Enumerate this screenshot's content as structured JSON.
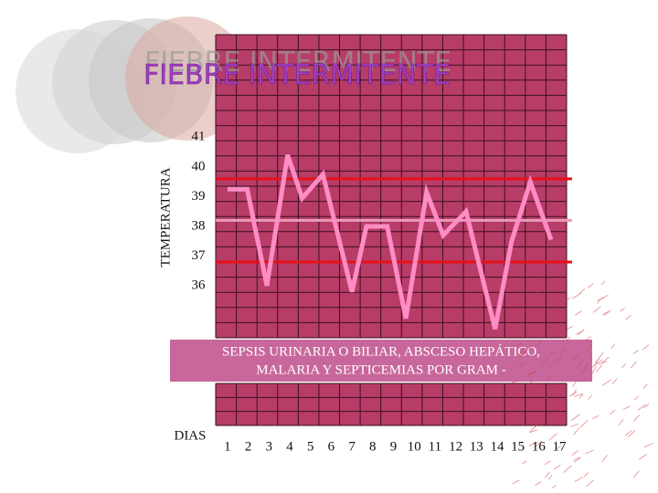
{
  "chart_data": {
    "type": "line",
    "title": "FIEBRE INTERMITENTE",
    "y_label": "TEMPERATURA",
    "x_label": "DIAS",
    "annotation": [
      "SEPSIS URINARIA O BILIAR, ABSCESO HEPÁTICO,",
      "MALARIA Y SEPTICEMIAS POR GRAM -"
    ],
    "xlim": [
      0.43,
      17.35
    ],
    "ylim": [
      34.25,
      44.45
    ],
    "xticks": [
      1,
      2,
      3,
      4,
      5,
      6,
      7,
      8,
      9,
      10,
      11,
      12,
      13,
      14,
      15,
      16,
      17
    ],
    "yticks": [
      36,
      37,
      38,
      39,
      40,
      41
    ],
    "x": [
      1,
      1.95,
      2.9,
      3.9,
      4.6,
      5.6,
      7.0,
      7.7,
      8.7,
      9.6,
      10.6,
      11.4,
      12.5,
      13.9,
      14.7,
      15.6,
      16.6
    ],
    "series": [
      {
        "color": "#ff8cc4",
        "values": [
          39.25,
          39.25,
          36.0,
          40.4,
          38.95,
          39.75,
          35.8,
          38.0,
          38.0,
          34.9,
          39.15,
          37.7,
          38.5,
          34.55,
          37.5,
          39.5,
          37.55
        ]
      }
    ],
    "reference_lines": [
      {
        "value": 39.6,
        "color": "#e8101a"
      },
      {
        "value": 38.2,
        "color": "#e89ab8"
      },
      {
        "value": 36.8,
        "color": "#e8101a"
      }
    ]
  }
}
